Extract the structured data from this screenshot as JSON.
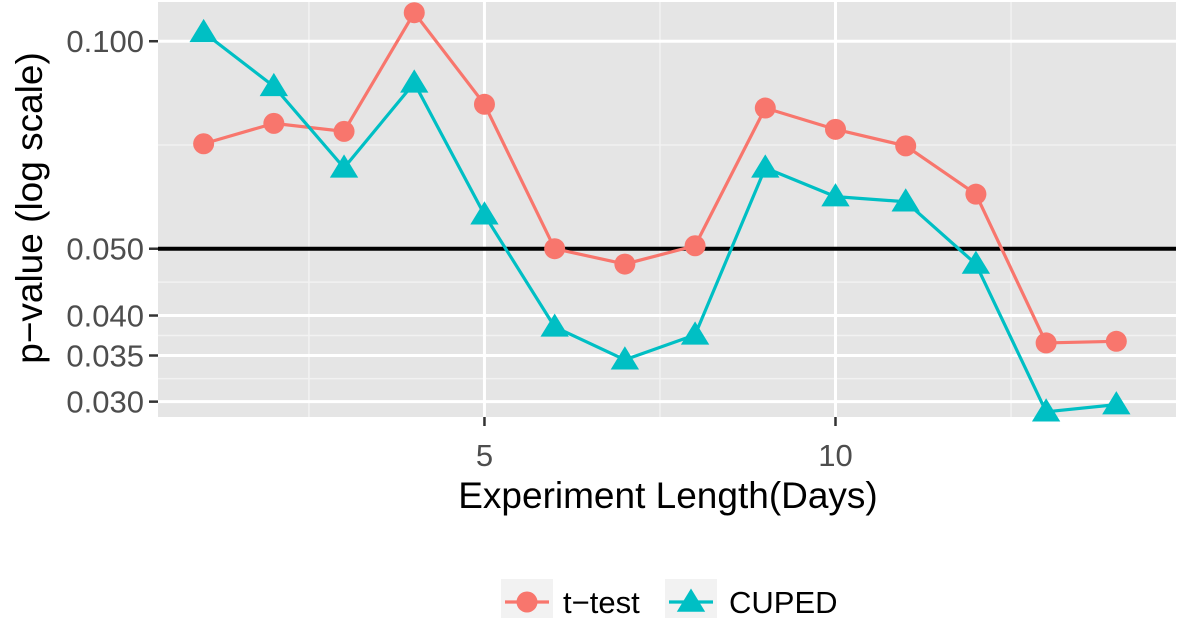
{
  "chart_data": {
    "type": "line",
    "title": "",
    "xlabel": "Experiment Length(Days)",
    "ylabel": "p−value (log scale)",
    "x": [
      1,
      2,
      3,
      4,
      5,
      6,
      7,
      8,
      9,
      10,
      11,
      12,
      13,
      14
    ],
    "xlim": [
      0.35,
      14.85
    ],
    "ylim": [
      0.0285,
      0.114
    ],
    "y_scale": "log",
    "x_ticks": [
      5,
      10
    ],
    "x_tick_labels": [
      "5",
      "10"
    ],
    "y_ticks": [
      0.03,
      0.035,
      0.04,
      0.05,
      0.1
    ],
    "y_tick_labels": [
      "0.030",
      "0.035",
      "0.040",
      "0.050",
      "0.100"
    ],
    "reference_line": {
      "y": 0.05,
      "color": "#000000"
    },
    "grid": true,
    "background": "#e5e5e5",
    "legend_position": "bottom",
    "series": [
      {
        "name": "t−test",
        "marker": "circle",
        "color": "#f8766d",
        "values": [
          0.071,
          0.076,
          0.074,
          0.11,
          0.081,
          0.05,
          0.0475,
          0.0505,
          0.08,
          0.0745,
          0.0705,
          0.06,
          0.0365,
          0.0367
        ]
      },
      {
        "name": "CUPED",
        "marker": "triangle",
        "color": "#00bfc4",
        "values": [
          0.103,
          0.086,
          0.0655,
          0.087,
          0.056,
          0.0385,
          0.0345,
          0.0375,
          0.0655,
          0.0595,
          0.0585,
          0.0475,
          0.029,
          0.0297
        ]
      }
    ]
  }
}
